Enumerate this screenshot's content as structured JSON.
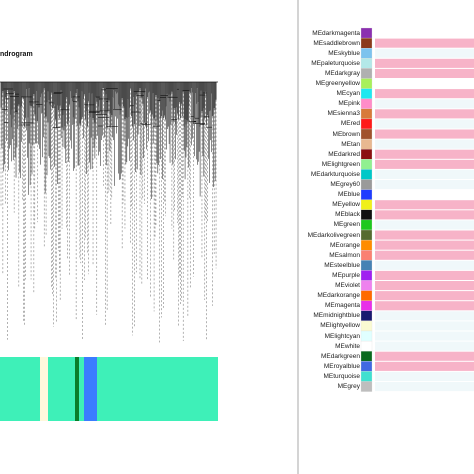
{
  "dendrogram": {
    "title": "ndrogram",
    "color_bar": {
      "base_color": "#3ef0b8",
      "stripes": [
        {
          "name": "ivory",
          "color": "#fff8dc"
        },
        {
          "name": "green",
          "color": "#0a7d2a"
        },
        {
          "name": "blue",
          "color": "#3b7cff"
        }
      ]
    }
  },
  "modules": [
    {
      "label": "MEdarkmagenta",
      "color": "#8b2fb0",
      "bar": "#ffffff"
    },
    {
      "label": "MEsaddlebrown",
      "color": "#8b3a1a",
      "bar": "#f7b3c8"
    },
    {
      "label": "MEskyblue",
      "color": "#7cc3ee",
      "bar": "#f0f8fa"
    },
    {
      "label": "MEpaleturquoise",
      "color": "#b3e8e8",
      "bar": "#f7b3c8"
    },
    {
      "label": "MEdarkgray",
      "color": "#b0b0b0",
      "bar": "#f7b3c8"
    },
    {
      "label": "MEgreenyellow",
      "color": "#a8f05a",
      "bar": "#ffffff"
    },
    {
      "label": "MEcyan",
      "color": "#1fe8f0",
      "bar": "#f7b3c8"
    },
    {
      "label": "MEpink",
      "color": "#ff8cc8",
      "bar": "#f0f8fa"
    },
    {
      "label": "MEsienna3",
      "color": "#d87a3a",
      "bar": "#f7b3c8"
    },
    {
      "label": "MEred",
      "color": "#ff1a1a",
      "bar": "#f0f8fa"
    },
    {
      "label": "MEbrown",
      "color": "#a0522d",
      "bar": "#f7b3c8"
    },
    {
      "label": "MEtan",
      "color": "#e8b890",
      "bar": "#f0f8fa"
    },
    {
      "label": "MEdarkred",
      "color": "#8b1010",
      "bar": "#f7b3c8"
    },
    {
      "label": "MElightgreen",
      "color": "#90f090",
      "bar": "#f7b3c8"
    },
    {
      "label": "MEdarkturquoise",
      "color": "#00c8c8",
      "bar": "#f0f8fa"
    },
    {
      "label": "MEgrey60",
      "color": "#9a9a9a",
      "bar": "#f0f8fa"
    },
    {
      "label": "MEblue",
      "color": "#1f3cff",
      "bar": "#ffffff"
    },
    {
      "label": "MEyellow",
      "color": "#f0f01a",
      "bar": "#f7b3c8"
    },
    {
      "label": "MEblack",
      "color": "#111111",
      "bar": "#f7b3c8"
    },
    {
      "label": "MEgreen",
      "color": "#1fc81f",
      "bar": "#f0f8fa"
    },
    {
      "label": "MEdarkolivegreen",
      "color": "#556b2f",
      "bar": "#f7b3c8"
    },
    {
      "label": "MEorange",
      "color": "#ff8c00",
      "bar": "#f7b3c8"
    },
    {
      "label": "MEsalmon",
      "color": "#fa8072",
      "bar": "#f7b3c8"
    },
    {
      "label": "MEsteelblue",
      "color": "#4682b4",
      "bar": "#f0f8fa"
    },
    {
      "label": "MEpurple",
      "color": "#a020f0",
      "bar": "#f7b3c8"
    },
    {
      "label": "MEviolet",
      "color": "#ee82ee",
      "bar": "#f7b3c8"
    },
    {
      "label": "MEdarkorange",
      "color": "#ff6a00",
      "bar": "#f7b3c8"
    },
    {
      "label": "MEmagenta",
      "color": "#e830e8",
      "bar": "#f7b3c8"
    },
    {
      "label": "MEmidnightblue",
      "color": "#191970",
      "bar": "#f0f8fa"
    },
    {
      "label": "MElightyellow",
      "color": "#fafad2",
      "bar": "#f0f8fa"
    },
    {
      "label": "MElightcyan",
      "color": "#e0ffff",
      "bar": "#f0f8fa"
    },
    {
      "label": "MEwhite",
      "color": "#ffffff",
      "bar": "#f0f8fa"
    },
    {
      "label": "MEdarkgreen",
      "color": "#0a6a1f",
      "bar": "#f7b3c8"
    },
    {
      "label": "MEroyalblue",
      "color": "#4169e1",
      "bar": "#f7b3c8"
    },
    {
      "label": "MEturquoise",
      "color": "#40e0d0",
      "bar": "#f0f8fa"
    },
    {
      "label": "MEgrey",
      "color": "#bebebe",
      "bar": "#f0f8fa"
    }
  ]
}
